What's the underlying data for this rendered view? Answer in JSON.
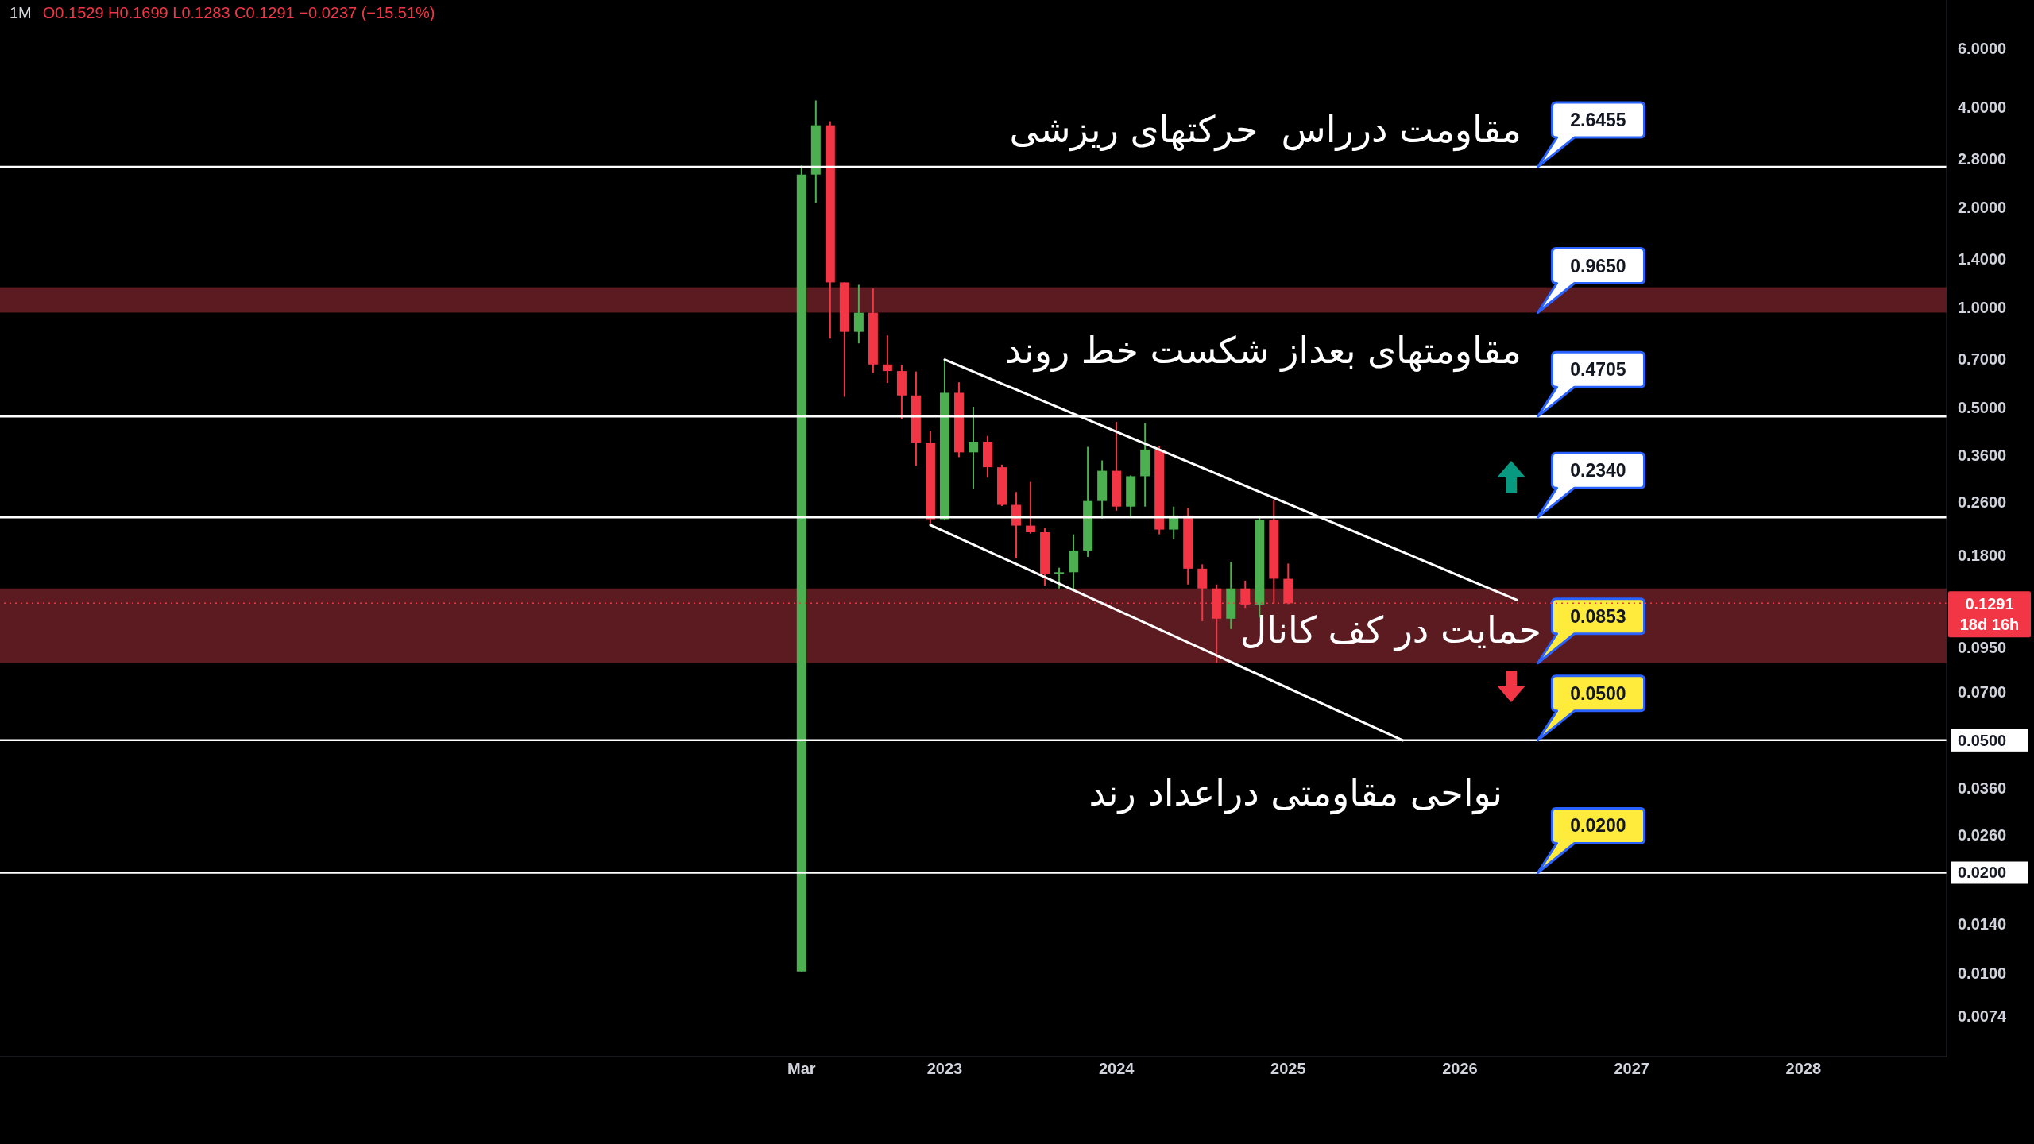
{
  "chart_data": {
    "type": "candlestick",
    "title": "1M",
    "subtitle": "O0.1529 H0.1699 L0.1283 C0.1291 −0.0237 (−15.51%)",
    "annotations": [
      "مقاومت درراس  حرکتهای ریزشی",
      "مقاومتهای بعداز شکست خط روند",
      "حمایت در کف کانال",
      "نواحی مقاومتی دراعداد رند"
    ],
    "x": [
      "2022-03",
      "2022-04",
      "2022-05",
      "2022-06",
      "2022-07",
      "2022-08",
      "2022-09",
      "2022-10",
      "2022-11",
      "2022-12",
      "2023-01",
      "2023-02",
      "2023-03",
      "2023-04",
      "2023-05",
      "2023-06",
      "2023-07",
      "2023-08",
      "2023-09",
      "2023-10",
      "2023-11",
      "2023-12",
      "2024-01",
      "2024-02",
      "2024-03",
      "2024-04",
      "2024-05",
      "2024-06",
      "2024-07",
      "2024-08",
      "2024-09",
      "2024-10",
      "2024-11",
      "2024-12",
      "2025-01"
    ],
    "ohlc": [
      [
        0.0101,
        2.67,
        0.0101,
        2.51
      ],
      [
        2.51,
        4.19,
        2.06,
        3.53
      ],
      [
        3.53,
        3.63,
        0.806,
        1.19
      ],
      [
        1.19,
        1.19,
        0.539,
        0.845
      ],
      [
        0.845,
        1.17,
        0.78,
        0.964
      ],
      [
        0.964,
        1.14,
        0.636,
        0.674
      ],
      [
        0.674,
        0.824,
        0.593,
        0.644
      ],
      [
        0.644,
        0.672,
        0.461,
        0.544
      ],
      [
        0.544,
        0.642,
        0.335,
        0.392
      ],
      [
        0.392,
        0.425,
        0.224,
        0.231
      ],
      [
        0.231,
        0.697,
        0.229,
        0.554
      ],
      [
        0.554,
        0.596,
        0.355,
        0.367
      ],
      [
        0.367,
        0.503,
        0.284,
        0.395
      ],
      [
        0.395,
        0.411,
        0.308,
        0.331
      ],
      [
        0.331,
        0.337,
        0.253,
        0.255
      ],
      [
        0.255,
        0.279,
        0.176,
        0.221
      ],
      [
        0.221,
        0.299,
        0.209,
        0.211
      ],
      [
        0.211,
        0.218,
        0.146,
        0.158
      ],
      [
        0.158,
        0.165,
        0.143,
        0.16
      ],
      [
        0.16,
        0.208,
        0.142,
        0.186
      ],
      [
        0.186,
        0.381,
        0.178,
        0.262
      ],
      [
        0.262,
        0.347,
        0.232,
        0.323
      ],
      [
        0.323,
        0.453,
        0.245,
        0.252
      ],
      [
        0.252,
        0.313,
        0.234,
        0.311
      ],
      [
        0.311,
        0.449,
        0.252,
        0.374
      ],
      [
        0.374,
        0.384,
        0.208,
        0.215
      ],
      [
        0.215,
        0.252,
        0.201,
        0.237
      ],
      [
        0.237,
        0.25,
        0.147,
        0.164
      ],
      [
        0.164,
        0.169,
        0.114,
        0.143
      ],
      [
        0.143,
        0.147,
        0.0855,
        0.116
      ],
      [
        0.116,
        0.172,
        0.108,
        0.143
      ],
      [
        0.143,
        0.151,
        0.125,
        0.128
      ],
      [
        0.128,
        0.237,
        0.117,
        0.23
      ],
      [
        0.23,
        0.264,
        0.129,
        0.153
      ],
      [
        0.1529,
        0.1699,
        0.1283,
        0.1291
      ]
    ],
    "colors": [
      "#4caf50",
      "#4caf50",
      "#f23645",
      "#f23645",
      "#4caf50",
      "#f23645",
      "#f23645",
      "#f23645",
      "#f23645",
      "#f23645",
      "#4caf50",
      "#f23645",
      "#4caf50",
      "#f23645",
      "#f23645",
      "#f23645",
      "#f23645",
      "#f23645",
      "#4caf50",
      "#4caf50",
      "#4caf50",
      "#4caf50",
      "#f23645",
      "#4caf50",
      "#4caf50",
      "#f23645",
      "#4caf50",
      "#f23645",
      "#f23645",
      "#f23645",
      "#4caf50",
      "#f23645",
      "#4caf50",
      "#f23645",
      "#f23645"
    ],
    "series": [
      {
        "type": "line",
        "x": [
          "2023-01",
          "2026-05"
        ],
        "values": [
          0.697,
          0.132
        ],
        "color": "#ffffff"
      },
      {
        "type": "line",
        "x": [
          "2022-12",
          "2025-09"
        ],
        "values": [
          0.222,
          0.05
        ],
        "color": "#ffffff"
      }
    ],
    "marker": "none",
    "ref_lines": [
      {
        "axis": "y",
        "value": 2.6455,
        "label": "2.6455",
        "color": "#ffffff"
      },
      {
        "axis": "y",
        "value": 0.4705,
        "label": "0.4705",
        "color": "#ffffff"
      },
      {
        "axis": "y",
        "value": 0.234,
        "label": "0.2340",
        "color": "#ffffff"
      },
      {
        "axis": "y",
        "value": 0.05,
        "label": "0.0500",
        "color": "#ffffff"
      },
      {
        "axis": "y",
        "value": 0.02,
        "label": "0.0200",
        "color": "#ffffff"
      },
      {
        "axis": "y",
        "value": 0.1291,
        "label": "0.1291\n18d 16h",
        "color": "#f23645",
        "line_style": "dotted"
      }
    ],
    "bands": [
      {
        "axis": "y",
        "from": 0.965,
        "to": 1.15,
        "label": "0.9650",
        "color": "#5c1b20"
      },
      {
        "axis": "y",
        "from": 0.0853,
        "to": 0.143,
        "label": "0.0853",
        "color": "#5c1b20"
      }
    ],
    "xlim": [
      "2017-07",
      "2028-11"
    ],
    "xticks": [
      {
        "value": "2022-03",
        "label": "Mar"
      },
      "2023",
      "2024",
      "2025",
      "2026",
      "2027",
      "2028"
    ],
    "ylim": [
      0.0056,
      8.4
    ],
    "log": true,
    "yticks": [
      {
        "value": 6,
        "label": "6.0000"
      },
      {
        "value": 4,
        "label": "4.0000"
      },
      {
        "value": 2.8,
        "label": "2.8000"
      },
      {
        "value": 2,
        "label": "2.0000"
      },
      {
        "value": 1.4,
        "label": "1.4000"
      },
      {
        "value": 1,
        "label": "1.0000"
      },
      {
        "value": 0.7,
        "label": "0.7000"
      },
      {
        "value": 0.5,
        "label": "0.5000"
      },
      {
        "value": 0.36,
        "label": "0.3600"
      },
      {
        "value": 0.26,
        "label": "0.2600"
      },
      {
        "value": 0.18,
        "label": "0.1800"
      },
      {
        "value": 0.095,
        "label": "0.0950"
      },
      {
        "value": 0.07,
        "label": "0.0700"
      },
      {
        "value": 0.05,
        "label": "0.0500"
      },
      {
        "value": 0.036,
        "label": "0.0360"
      },
      {
        "value": 0.026,
        "label": "0.0260"
      },
      {
        "value": 0.02,
        "label": "0.0200"
      },
      {
        "value": 0.014,
        "label": "0.0140"
      },
      {
        "value": 0.01,
        "label": "0.0100"
      },
      {
        "value": 0.0074,
        "label": "0.0074"
      }
    ]
  }
}
